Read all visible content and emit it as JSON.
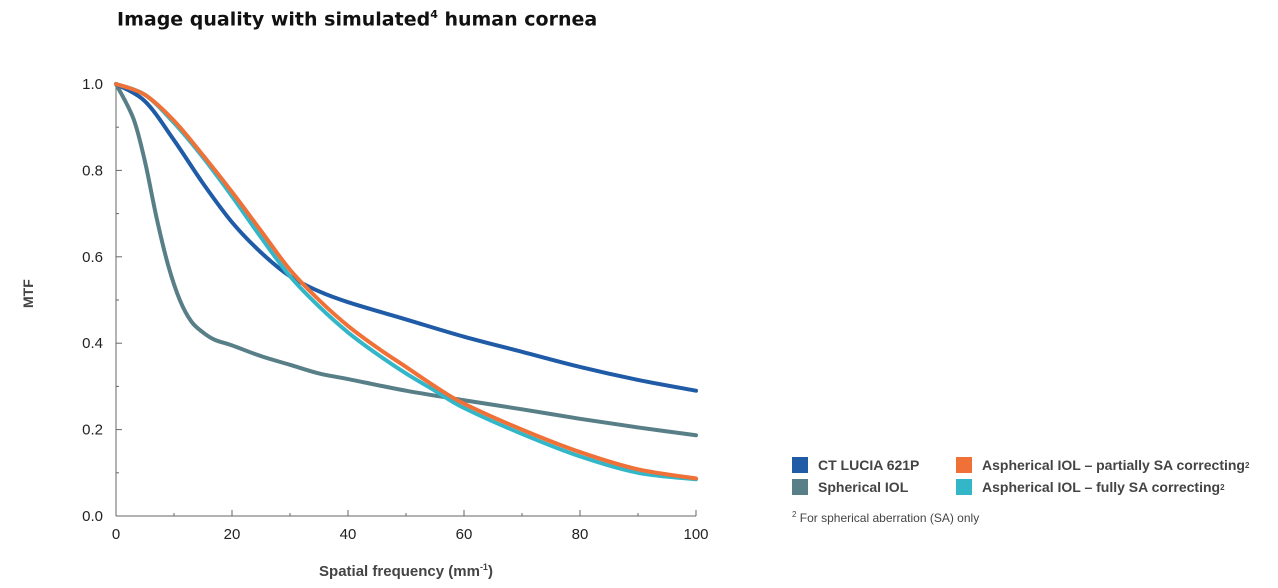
{
  "title": {
    "text": "Image quality with simulated",
    "sup": "4",
    "text_after": " human cornea"
  },
  "axes": {
    "xlabel": "Spatial frequency (mm",
    "xlabel_sup": "-1",
    "xlabel_end": ")",
    "ylabel": "MTF"
  },
  "footnote": {
    "sup": "2",
    "text": " For spherical aberration (SA) only"
  },
  "colors": {
    "ct_lucia": "#1f5ba6",
    "spherical": "#587f87",
    "asph_partial": "#ef7138",
    "asph_fully": "#33b6c8"
  },
  "chart_data": {
    "type": "line",
    "title": "Image quality with simulated4 human cornea",
    "xlabel": "Spatial frequency (mm-1)",
    "ylabel": "MTF",
    "xlim": [
      0,
      100
    ],
    "ylim": [
      0,
      1
    ],
    "x_ticks": [
      "0",
      "20",
      "40",
      "60",
      "80",
      "100"
    ],
    "y_ticks": [
      "0.0",
      "0.2",
      "0.4",
      "0.6",
      "0.8",
      "1.0"
    ],
    "grid": false,
    "legend_position": "bottom-right",
    "series": [
      {
        "name": "CT LUCIA 621P",
        "sup": "",
        "color": "#1f5ba6",
        "points": [
          [
            0,
            1.0
          ],
          [
            5,
            0.96
          ],
          [
            10,
            0.87
          ],
          [
            15,
            0.77
          ],
          [
            20,
            0.68
          ],
          [
            25,
            0.61
          ],
          [
            30,
            0.555
          ],
          [
            35,
            0.52
          ],
          [
            40,
            0.495
          ],
          [
            50,
            0.455
          ],
          [
            60,
            0.415
          ],
          [
            70,
            0.38
          ],
          [
            80,
            0.345
          ],
          [
            90,
            0.315
          ],
          [
            100,
            0.29
          ]
        ]
      },
      {
        "name": "Spherical IOL",
        "sup": "",
        "color": "#587f87",
        "points": [
          [
            0,
            1.0
          ],
          [
            3,
            0.92
          ],
          [
            5,
            0.82
          ],
          [
            7,
            0.69
          ],
          [
            9,
            0.58
          ],
          [
            11,
            0.5
          ],
          [
            13,
            0.45
          ],
          [
            15,
            0.425
          ],
          [
            17,
            0.408
          ],
          [
            20,
            0.395
          ],
          [
            25,
            0.37
          ],
          [
            30,
            0.35
          ],
          [
            35,
            0.33
          ],
          [
            40,
            0.317
          ],
          [
            50,
            0.29
          ],
          [
            60,
            0.268
          ],
          [
            70,
            0.247
          ],
          [
            80,
            0.225
          ],
          [
            90,
            0.205
          ],
          [
            100,
            0.187
          ]
        ]
      },
      {
        "name": "Aspherical IOL – partially SA correcting",
        "sup": "2",
        "color": "#ef7138",
        "points": [
          [
            0,
            1.0
          ],
          [
            5,
            0.975
          ],
          [
            10,
            0.915
          ],
          [
            15,
            0.835
          ],
          [
            20,
            0.75
          ],
          [
            25,
            0.66
          ],
          [
            30,
            0.57
          ],
          [
            35,
            0.5
          ],
          [
            40,
            0.44
          ],
          [
            45,
            0.39
          ],
          [
            50,
            0.345
          ],
          [
            55,
            0.3
          ],
          [
            60,
            0.26
          ],
          [
            70,
            0.2
          ],
          [
            80,
            0.148
          ],
          [
            90,
            0.108
          ],
          [
            100,
            0.087
          ]
        ]
      },
      {
        "name": "Aspherical IOL – fully SA correcting",
        "sup": "2",
        "color": "#33b6c8",
        "points": [
          [
            0,
            1.0
          ],
          [
            5,
            0.975
          ],
          [
            10,
            0.91
          ],
          [
            15,
            0.83
          ],
          [
            20,
            0.74
          ],
          [
            25,
            0.645
          ],
          [
            30,
            0.555
          ],
          [
            35,
            0.485
          ],
          [
            40,
            0.425
          ],
          [
            45,
            0.375
          ],
          [
            50,
            0.33
          ],
          [
            55,
            0.29
          ],
          [
            60,
            0.25
          ],
          [
            70,
            0.19
          ],
          [
            80,
            0.138
          ],
          [
            90,
            0.1
          ],
          [
            100,
            0.085
          ]
        ]
      }
    ]
  }
}
